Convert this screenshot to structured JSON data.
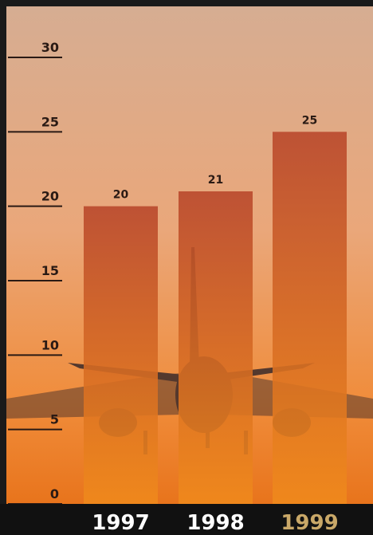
{
  "chart_data": {
    "type": "bar",
    "categories": [
      "1997",
      "1998",
      "1999"
    ],
    "values": [
      20,
      21,
      25
    ],
    "ylim": [
      0,
      30
    ],
    "yticks": [
      0,
      5,
      10,
      15,
      20,
      25,
      30
    ],
    "bar_color_top": "#b8462a",
    "bar_color_bottom": "#f08a1c",
    "label_color": "#ffffff",
    "highlight_index": 2,
    "highlight_label_color": "#c9a868"
  }
}
